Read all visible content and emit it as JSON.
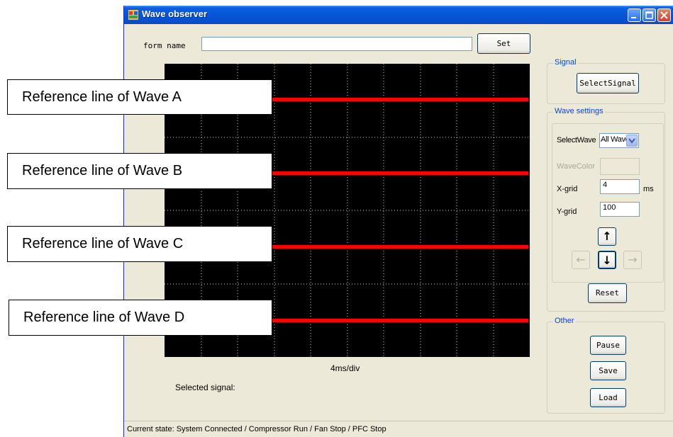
{
  "window": {
    "title": "Wave observer"
  },
  "form": {
    "label": "form name",
    "value": "",
    "set_label": "Set"
  },
  "plot": {
    "div_label": "4ms/div",
    "selected_signal_label": "Selected signal:"
  },
  "signal_group": {
    "title": "Signal",
    "button_label": "SelectSignal"
  },
  "wave_settings": {
    "title": "Wave settings",
    "select_wave_label": "SelectWave",
    "select_wave_value": "All Wave",
    "wave_color_label": "WaveColor",
    "xgrid_label": "X-grid",
    "xgrid_value": "4",
    "xgrid_unit": "ms",
    "ygrid_label": "Y-grid",
    "ygrid_value": "100",
    "up_arrow": "↑",
    "down_arrow": "↓",
    "left_arrow": "←",
    "right_arrow": "→"
  },
  "reset_label": "Reset",
  "other_group": {
    "title": "Other",
    "pause_label": "Pause",
    "save_label": "Save",
    "load_label": "Load"
  },
  "status": {
    "text": "Current state:  System Connected   / Compressor Run   / Fan Stop   / PFC Stop"
  },
  "callouts": {
    "a": "Reference line of Wave A",
    "b": "Reference line of Wave B",
    "c": "Reference line of Wave C",
    "d": "Reference line of Wave D"
  },
  "colors": {
    "reference_line": "#ff0000",
    "scope_background": "#000000",
    "group_title": "#0046d5"
  }
}
